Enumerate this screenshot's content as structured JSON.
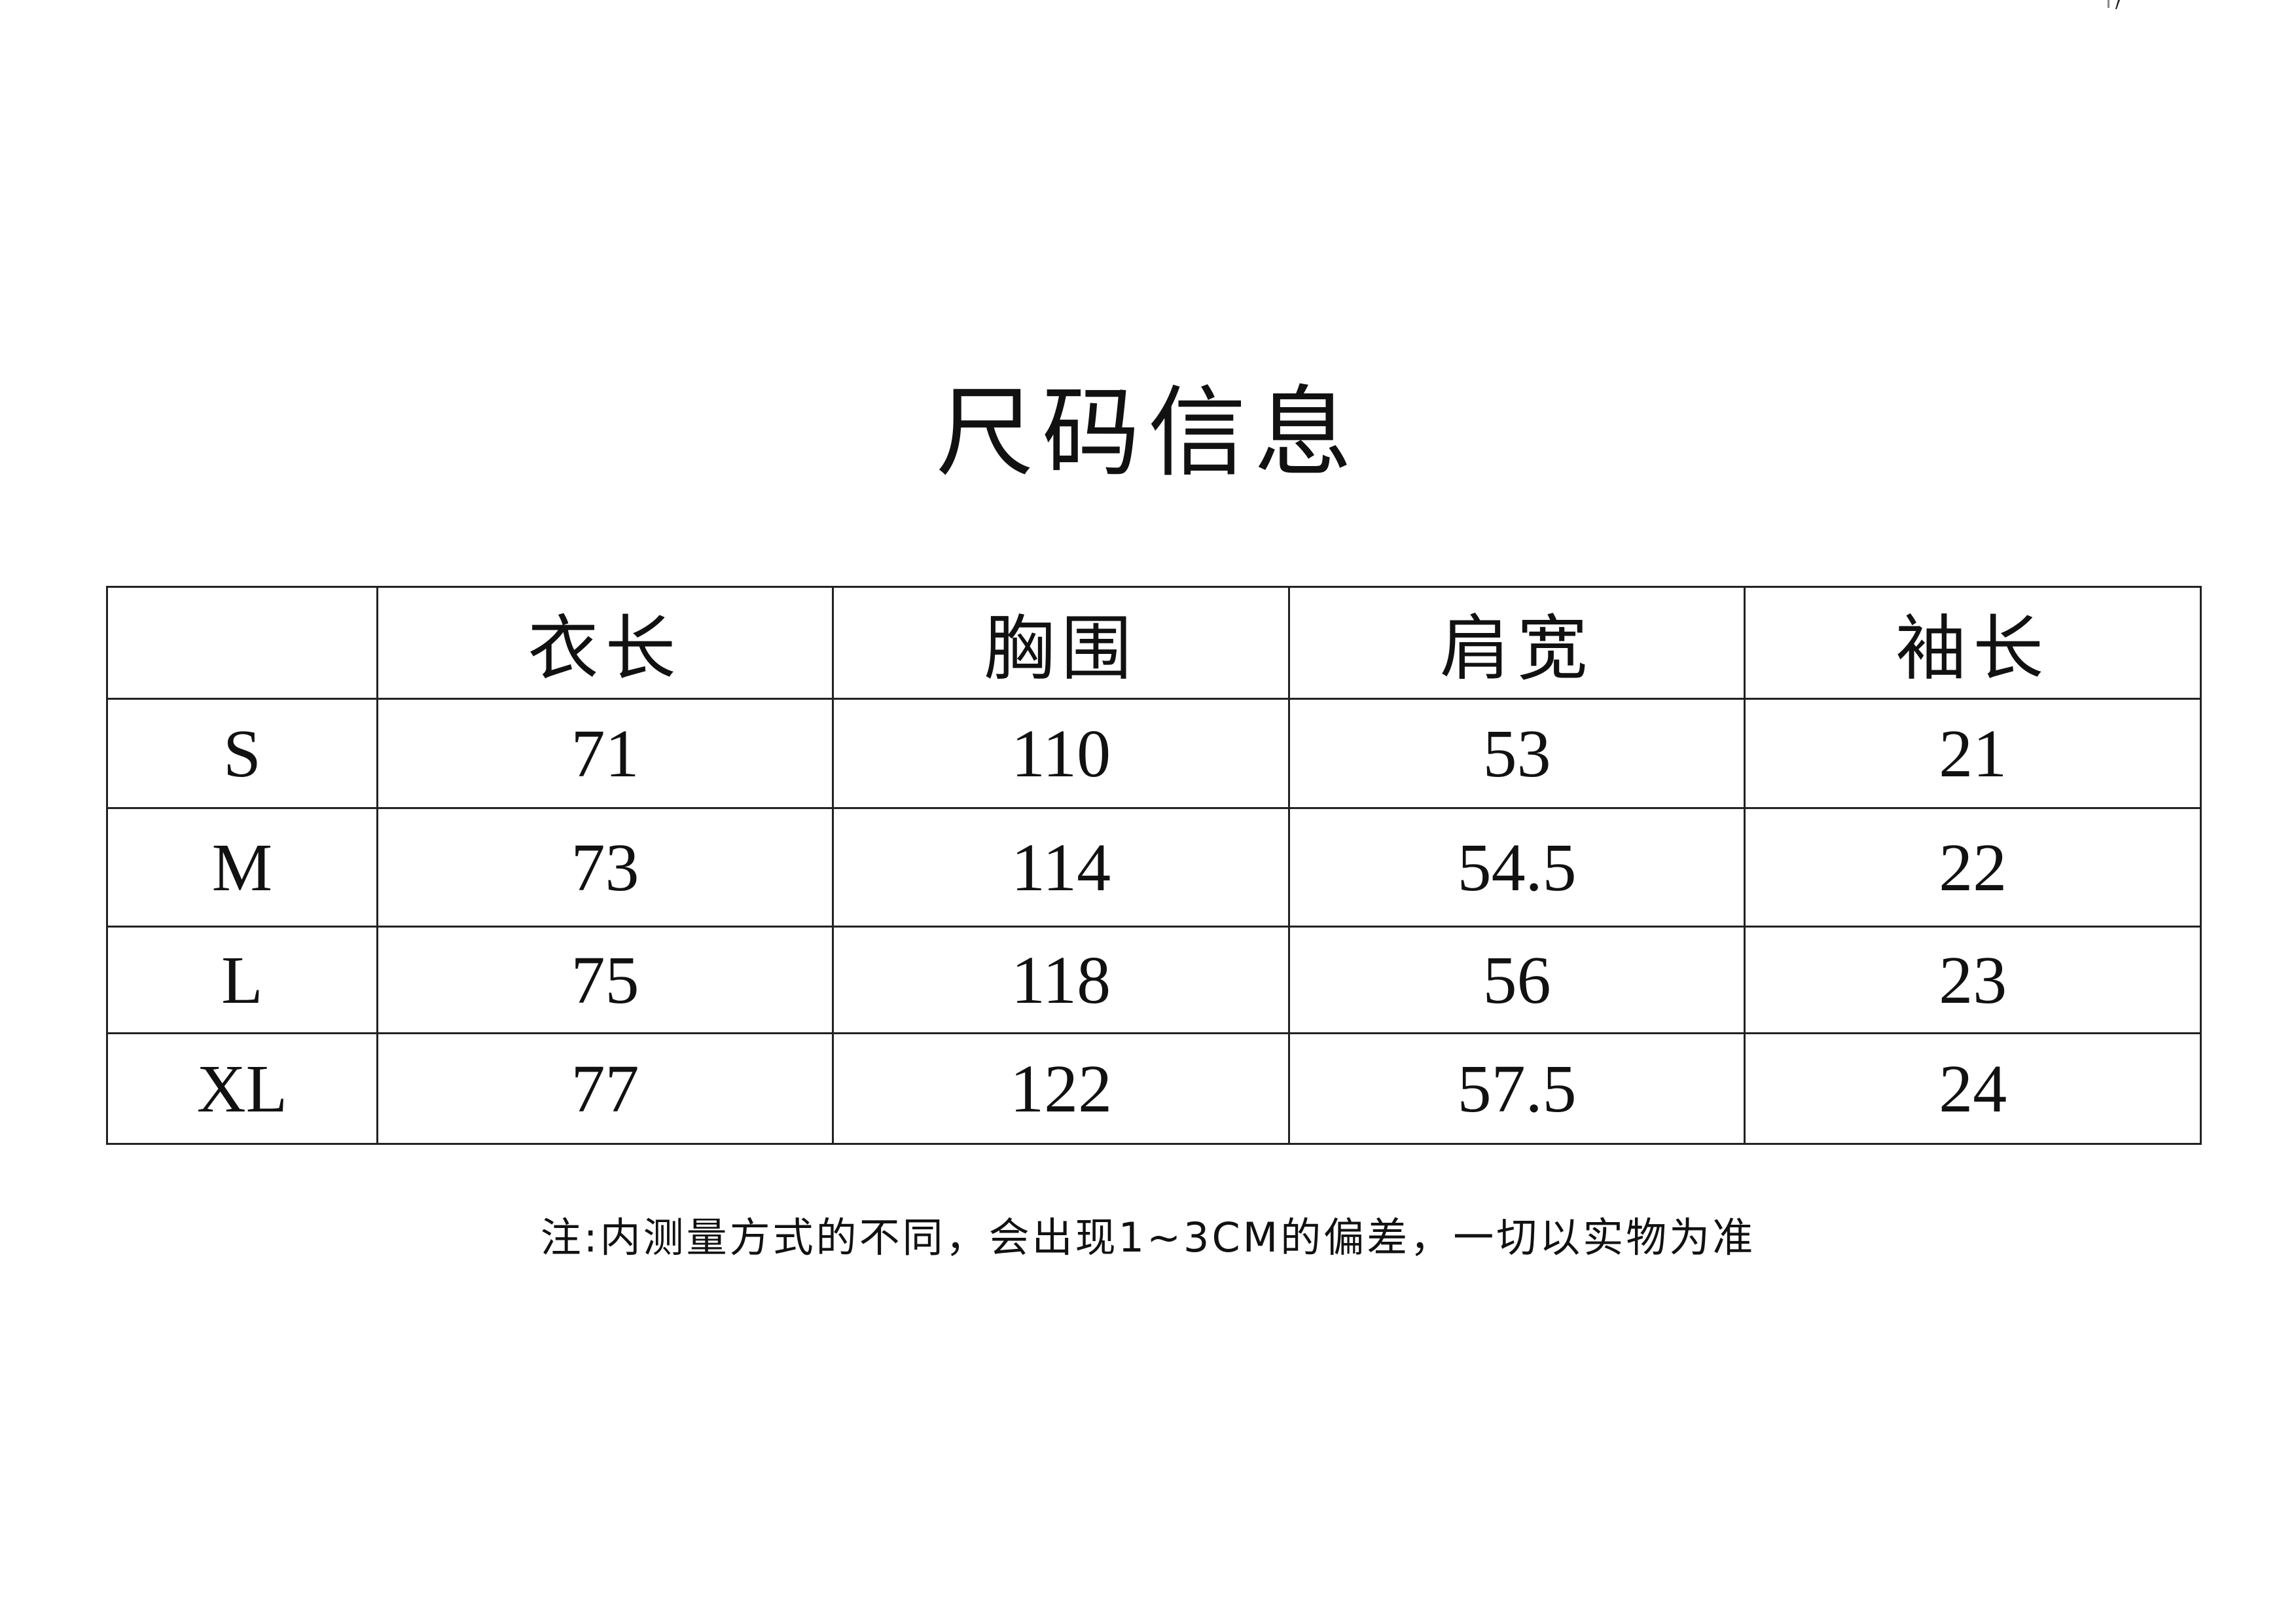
{
  "title": "尺码信息",
  "table": {
    "headers": [
      "",
      "衣长",
      "胸围",
      "肩宽",
      "袖长"
    ],
    "rows": [
      [
        "S",
        "71",
        "110",
        "53",
        "21"
      ],
      [
        "M",
        "73",
        "114",
        "54.5",
        "22"
      ],
      [
        "L",
        "75",
        "118",
        "56",
        "23"
      ],
      [
        "XL",
        "77",
        "122",
        "57.5",
        "24"
      ]
    ]
  },
  "note": "注:内测量方式的不同，会出现1~3CM的偏差，一切以实物为准"
}
